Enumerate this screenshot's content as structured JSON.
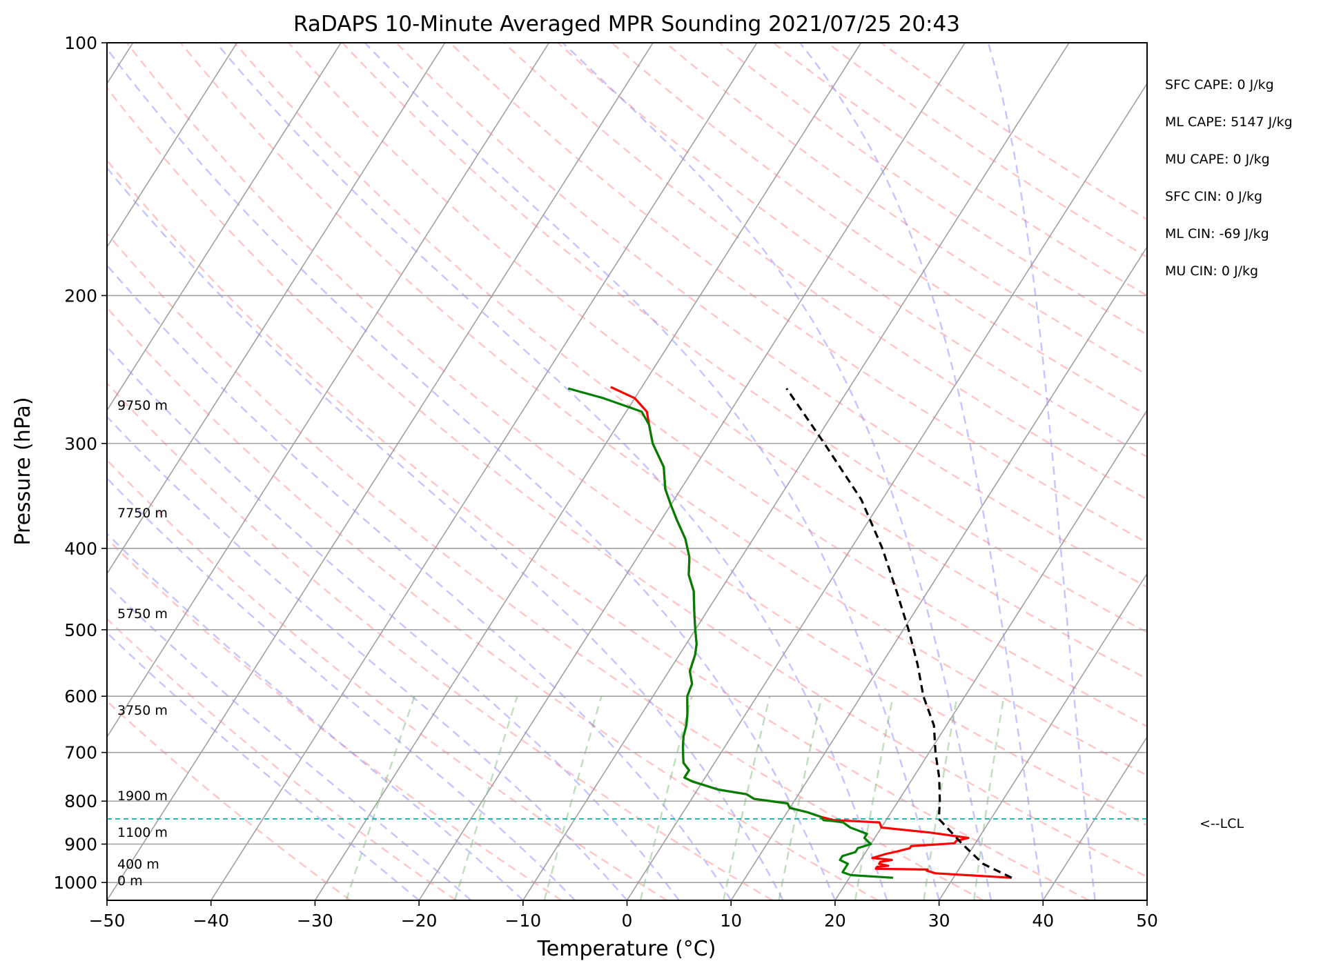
{
  "chart_data": {
    "type": "skew-t",
    "title": "RaDAPS 10-Minute Averaged MPR Sounding 2021/07/25 20:43",
    "xlabel": "Temperature (°C)",
    "ylabel": "Pressure (hPa)",
    "xlim": [
      -50,
      50
    ],
    "ylim": [
      1050,
      100
    ],
    "y_scale": "log",
    "x_ticks": [
      "−50",
      "−40",
      "−30",
      "−20",
      "−10",
      "0",
      "10",
      "20",
      "30",
      "40",
      "50"
    ],
    "y_ticks": [
      "100",
      "200",
      "300",
      "400",
      "500",
      "600",
      "700",
      "800",
      "900",
      "1000"
    ],
    "height_labels": [
      "9750 m",
      "7750 m",
      "5750 m",
      "3750 m",
      "1900 m",
      "1100 m",
      "400 m",
      "0 m"
    ],
    "parameters": [
      "SFC CAPE: 0 J/kg",
      "ML CAPE: 5147 J/kg",
      "MU CAPE: 0 J/kg",
      "SFC CIN: 0 J/kg",
      "ML CIN: -69 J/kg",
      "MU CIN: 0 J/kg"
    ],
    "lcl": {
      "pressure": 840,
      "label": "<--LCL"
    },
    "series": [
      {
        "color": "#ff0000",
        "points": [
          [
            987,
            35.6
          ],
          [
            975,
            28
          ],
          [
            968,
            27
          ],
          [
            965,
            27
          ],
          [
            963,
            22
          ],
          [
            958,
            22
          ],
          [
            955,
            23
          ],
          [
            950,
            22
          ],
          [
            945,
            22
          ],
          [
            940,
            23
          ],
          [
            935,
            21
          ],
          [
            925,
            22
          ],
          [
            918,
            23
          ],
          [
            910,
            24
          ],
          [
            905,
            24
          ],
          [
            898,
            28
          ],
          [
            892,
            28
          ],
          [
            885,
            29
          ],
          [
            872,
            25
          ],
          [
            860,
            20
          ],
          [
            848,
            19.5
          ],
          [
            845,
            17
          ],
          [
            843,
            15
          ],
          [
            835,
            13.5
          ],
          [
            825,
            12
          ],
          [
            815,
            10
          ],
          [
            805,
            9.5
          ],
          [
            795,
            6
          ],
          [
            785,
            5
          ],
          [
            775,
            2
          ],
          [
            758,
            -1
          ],
          [
            750,
            -2
          ],
          [
            735,
            -2
          ],
          [
            720,
            -3
          ],
          [
            705,
            -3.5
          ],
          [
            690,
            -4
          ],
          [
            670,
            -4.6
          ],
          [
            650,
            -5
          ],
          [
            630,
            -5.6
          ],
          [
            600,
            -6.7
          ],
          [
            580,
            -7
          ],
          [
            560,
            -8
          ],
          [
            535,
            -8.5
          ],
          [
            520,
            -9
          ],
          [
            500,
            -10
          ],
          [
            480,
            -11
          ],
          [
            460,
            -12
          ],
          [
            450,
            -12.5
          ],
          [
            430,
            -14
          ],
          [
            410,
            -15
          ],
          [
            390,
            -16.5
          ],
          [
            370,
            -18.5
          ],
          [
            355,
            -20
          ],
          [
            340,
            -21.5
          ],
          [
            320,
            -23
          ],
          [
            300,
            -25.5
          ],
          [
            285,
            -27
          ],
          [
            275,
            -28
          ],
          [
            265,
            -30
          ],
          [
            257,
            -33
          ]
        ]
      },
      {
        "color": "#008000",
        "points": [
          [
            987,
            24.2
          ],
          [
            980,
            20
          ],
          [
            972,
            19
          ],
          [
            962,
            19
          ],
          [
            950,
            19
          ],
          [
            940,
            18
          ],
          [
            930,
            18
          ],
          [
            920,
            19
          ],
          [
            910,
            19
          ],
          [
            900,
            20
          ],
          [
            885,
            19
          ],
          [
            875,
            19
          ],
          [
            860,
            17
          ],
          [
            848,
            16
          ],
          [
            845,
            15
          ],
          [
            843,
            14
          ],
          [
            835,
            13.5
          ],
          [
            825,
            12
          ],
          [
            815,
            10
          ],
          [
            805,
            9.5
          ],
          [
            795,
            6
          ],
          [
            785,
            5
          ],
          [
            775,
            2
          ],
          [
            758,
            -1
          ],
          [
            750,
            -2
          ],
          [
            735,
            -2
          ],
          [
            720,
            -3
          ],
          [
            705,
            -3.5
          ],
          [
            690,
            -4
          ],
          [
            670,
            -4.6
          ],
          [
            650,
            -5
          ],
          [
            630,
            -5.6
          ],
          [
            600,
            -6.7
          ],
          [
            580,
            -7
          ],
          [
            560,
            -8
          ],
          [
            535,
            -8.5
          ],
          [
            520,
            -9
          ],
          [
            500,
            -10
          ],
          [
            480,
            -11
          ],
          [
            460,
            -12
          ],
          [
            450,
            -12.5
          ],
          [
            430,
            -14
          ],
          [
            410,
            -15
          ],
          [
            390,
            -16.5
          ],
          [
            370,
            -18.5
          ],
          [
            355,
            -20
          ],
          [
            340,
            -21.5
          ],
          [
            320,
            -23
          ],
          [
            300,
            -25.5
          ],
          [
            285,
            -27
          ],
          [
            275,
            -28.5
          ],
          [
            265,
            -33
          ],
          [
            258,
            -37
          ]
        ]
      },
      {
        "color": "#000000",
        "dashed": true,
        "points": [
          [
            987,
            35.6
          ],
          [
            950,
            32
          ],
          [
            900,
            28.8
          ],
          [
            840,
            25
          ],
          [
            800,
            24
          ],
          [
            750,
            22.5
          ],
          [
            700,
            20.6
          ],
          [
            650,
            18.8
          ],
          [
            600,
            16
          ],
          [
            550,
            13.5
          ],
          [
            500,
            10.5
          ],
          [
            450,
            7
          ],
          [
            400,
            3
          ],
          [
            350,
            -2
          ],
          [
            300,
            -9
          ],
          [
            258,
            -16
          ]
        ]
      }
    ]
  }
}
